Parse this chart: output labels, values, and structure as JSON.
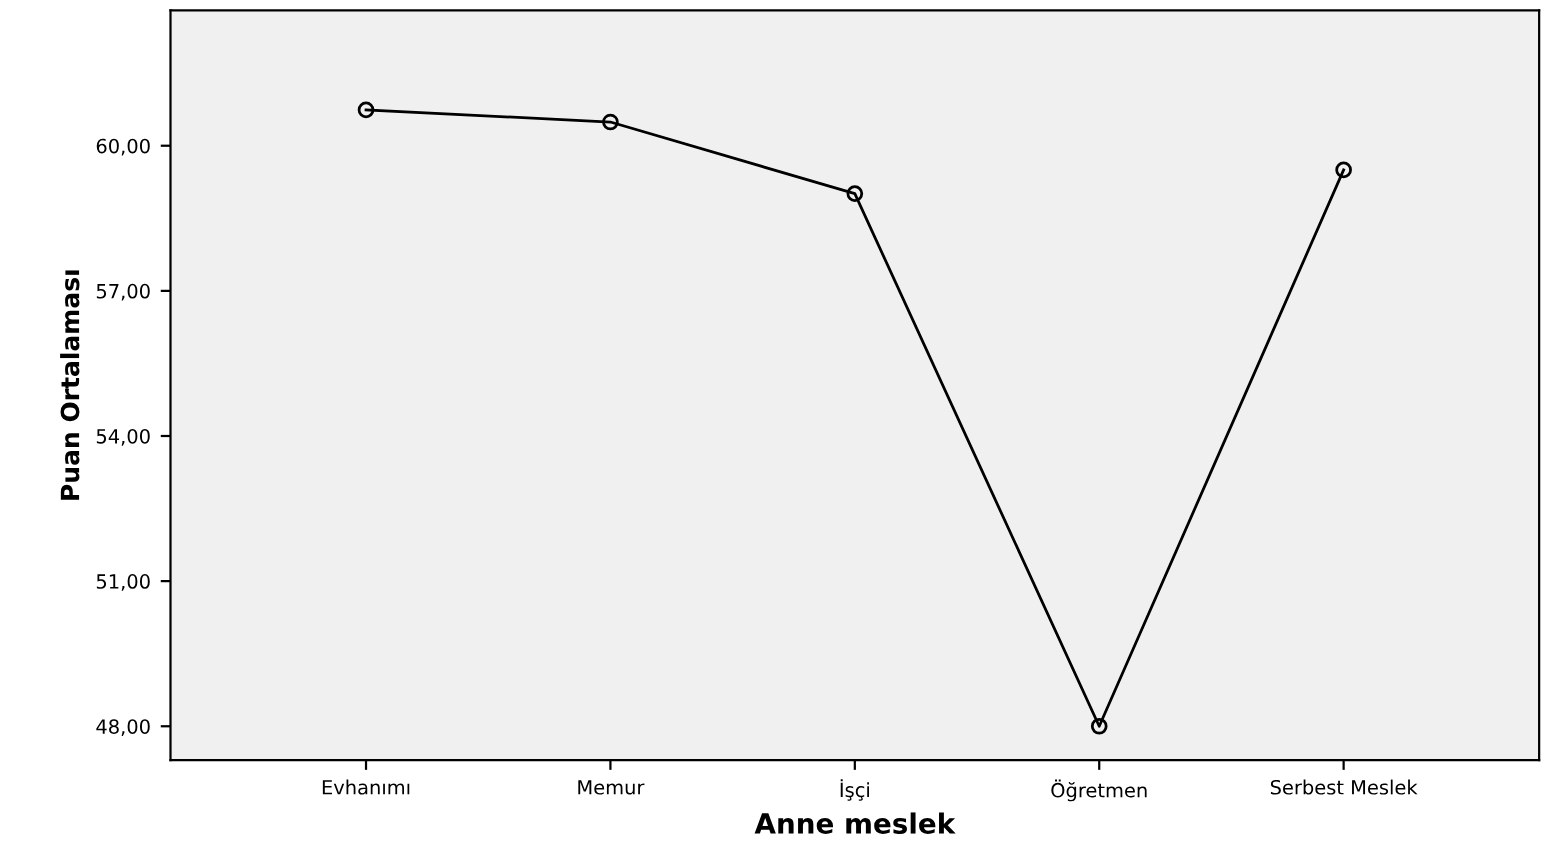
{
  "chart_data": {
    "type": "line",
    "xlabel": "Anne meslek",
    "ylabel": "Puan Ortalaması",
    "categories": [
      "Evhanımı",
      "Memur",
      "İşçi",
      "Öğretmen",
      "Serbest Meslek"
    ],
    "series": [
      {
        "color": "#000000",
        "values": [
          60.74,
          60.49,
          59.01,
          48.0,
          59.5
        ]
      }
    ],
    "ylim": [
      47.3,
      62.8
    ],
    "yticks": [
      {
        "value": 48,
        "label": "48,00"
      },
      {
        "value": 51,
        "label": "51,00"
      },
      {
        "value": 54,
        "label": "54,00"
      },
      {
        "value": 57,
        "label": "57,00"
      },
      {
        "value": 60,
        "label": "60,00"
      }
    ],
    "marker": "circle",
    "line_style": "solid",
    "grid": false,
    "legend": false
  }
}
